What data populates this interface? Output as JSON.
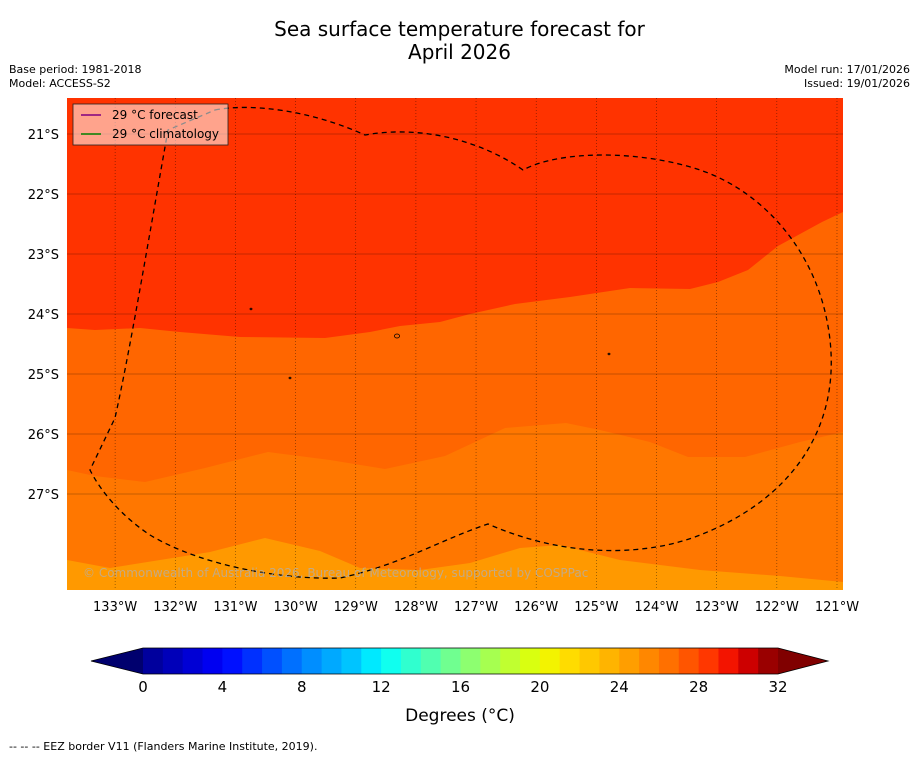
{
  "header": {
    "title_line1": "Sea surface temperature forecast for",
    "title_line2": "April 2026",
    "base_period": "Base period: 1981-2018",
    "model": "Model: ACCESS-S2",
    "model_run": "Model run: 17/01/2026",
    "issued": "Issued: 19/01/2026"
  },
  "colors": {
    "band_30": "#ff3300",
    "band_29": "#ff6600",
    "band_28": "#ff7700",
    "band_27": "#ff8c00",
    "band_26": "#ff9900",
    "legend_forecast": "#800080",
    "legend_climatology": "#008000"
  },
  "chart_data": {
    "type": "heatmap",
    "variable": "Sea surface temperature forecast",
    "units": "°C",
    "period": "April 2026",
    "lon_range": [
      -133.8,
      -120.9
    ],
    "lat_range": [
      -28.6,
      -20.4
    ],
    "x_ticks": [
      "133°W",
      "132°W",
      "131°W",
      "130°W",
      "129°W",
      "128°W",
      "127°W",
      "126°W",
      "125°W",
      "124°W",
      "123°W",
      "122°W",
      "121°W"
    ],
    "x_tick_values": [
      -133,
      -132,
      -131,
      -130,
      -129,
      -128,
      -127,
      -126,
      -125,
      -124,
      -123,
      -122,
      -121
    ],
    "y_ticks": [
      "21°S",
      "22°S",
      "23°S",
      "24°S",
      "25°S",
      "26°S",
      "27°S"
    ],
    "y_tick_values": [
      -21,
      -22,
      -23,
      -24,
      -25,
      -26,
      -27
    ],
    "legend": [
      {
        "label": "29 °C  forecast",
        "color_key": "legend_forecast"
      },
      {
        "label": "29 °C  climatology",
        "color_key": "legend_climatology"
      }
    ],
    "temperature_bands": [
      {
        "min_c": 29,
        "max_c": 30,
        "region": "north",
        "color_key": "band_30"
      },
      {
        "min_c": 28,
        "max_c": 29,
        "region": "central-north",
        "color_key": "band_29"
      },
      {
        "min_c": 27,
        "max_c": 28,
        "region": "central-south",
        "color_key": "band_28"
      },
      {
        "min_c": 26,
        "max_c": 27,
        "region": "south",
        "color_key": "band_26"
      }
    ],
    "colorbar": {
      "label": "Degrees ($^\\circ$C)",
      "label_display": "Degrees (°C)",
      "min": 0,
      "max": 32,
      "step": 1,
      "extend": "both",
      "tick_values": [
        0,
        4,
        8,
        12,
        16,
        20,
        24,
        28,
        32
      ],
      "tick_labels": [
        "0",
        "4",
        "8",
        "12",
        "16",
        "20",
        "24",
        "28",
        "32"
      ]
    },
    "eez_boundary": "dashed",
    "watermark": "© Commonwealth of Australia 2026, Bureau of Meteorology, supported by COSPPac"
  },
  "footer": {
    "eez_note": "--  --  -- EEZ border V11 (Flanders Marine Institute, 2019)."
  }
}
